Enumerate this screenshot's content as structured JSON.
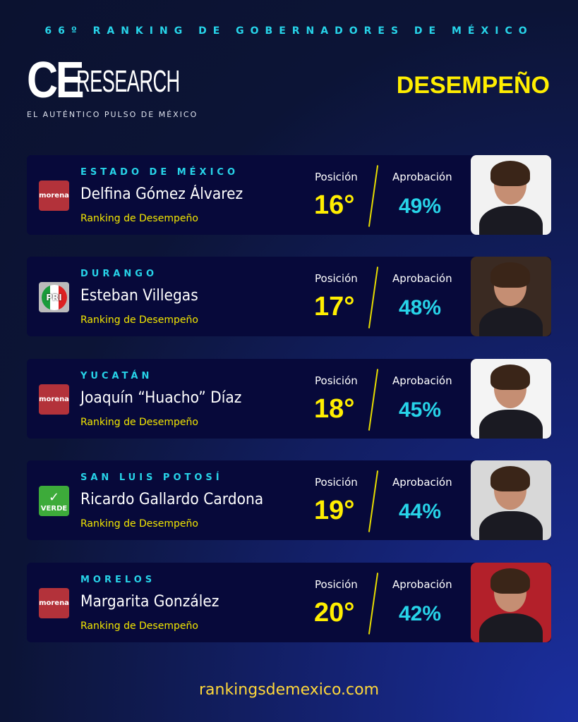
{
  "header": {
    "subtitle": "66º RANKING DE GOBERNADORES DE MÉXICO",
    "logo_ce": "CE",
    "logo_research": "RESEARCH",
    "logo_tagline": "EL AUTÉNTICO PULSO DE MÉXICO",
    "title": "DESEMPEÑO"
  },
  "labels": {
    "position": "Posición",
    "approval": "Aprobación"
  },
  "cards": [
    {
      "state": "ESTADO DE MÉXICO",
      "name": "Delfina Gómez Álvarez",
      "subtitle": "Ranking de Desempeño",
      "position": "16°",
      "approval": "49%",
      "party": "morena",
      "photo_bg": "#f2f2f2"
    },
    {
      "state": "DURANGO",
      "name": "Esteban Villegas",
      "subtitle": "Ranking de Desempeño",
      "position": "17°",
      "approval": "48%",
      "party": "PRI",
      "photo_bg": "#3a2a22"
    },
    {
      "state": "YUCATÁN",
      "name": "Joaquín “Huacho” Díaz",
      "subtitle": "Ranking de Desempeño",
      "position": "18°",
      "approval": "45%",
      "party": "morena",
      "photo_bg": "#f4f4f4"
    },
    {
      "state": "SAN LUIS POTOSÍ",
      "name": "Ricardo Gallardo Cardona",
      "subtitle": "Ranking de Desempeño",
      "position": "19°",
      "approval": "44%",
      "party": "VERDE",
      "photo_bg": "#d8d8d8"
    },
    {
      "state": "MORELOS",
      "name": "Margarita González",
      "subtitle": "Ranking de Desempeño",
      "position": "20°",
      "approval": "42%",
      "party": "morena",
      "photo_bg": "#b3202a"
    }
  ],
  "footer": {
    "url": "rankingsdemexico.com"
  }
}
